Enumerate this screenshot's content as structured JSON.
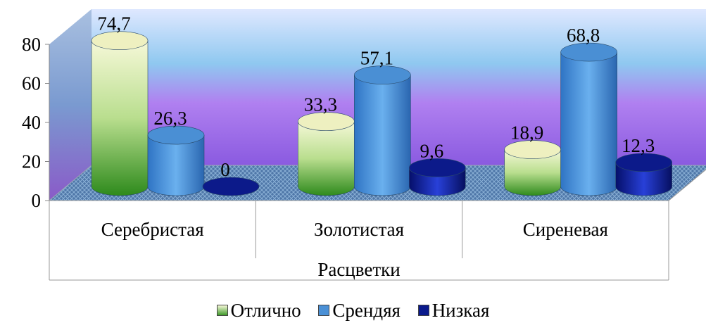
{
  "chart_data": {
    "type": "bar",
    "variant": "3d-cylinder",
    "categories": [
      "Серебристая",
      "Золотистая",
      "Сиреневая"
    ],
    "xlabel": "Расцветки",
    "ylim": [
      0,
      80
    ],
    "yticks": [
      0,
      20,
      40,
      60,
      80
    ],
    "series": [
      {
        "name": "Отлично",
        "values": [
          74.7,
          33.3,
          18.9
        ],
        "value_labels": [
          "74,7",
          "33,3",
          "18,9"
        ],
        "color": "#3f9a2a"
      },
      {
        "name": "Срендяя",
        "values": [
          26.3,
          57.1,
          68.8
        ],
        "value_labels": [
          "26,3",
          "57,1",
          "68,8"
        ],
        "color": "#4a90d6"
      },
      {
        "name": "Низкая",
        "values": [
          0,
          9.6,
          12.3
        ],
        "value_labels": [
          "0",
          "9,6",
          "12,3"
        ],
        "color": "#0a1a8c"
      }
    ],
    "legend_position": "bottom",
    "grid": false
  }
}
